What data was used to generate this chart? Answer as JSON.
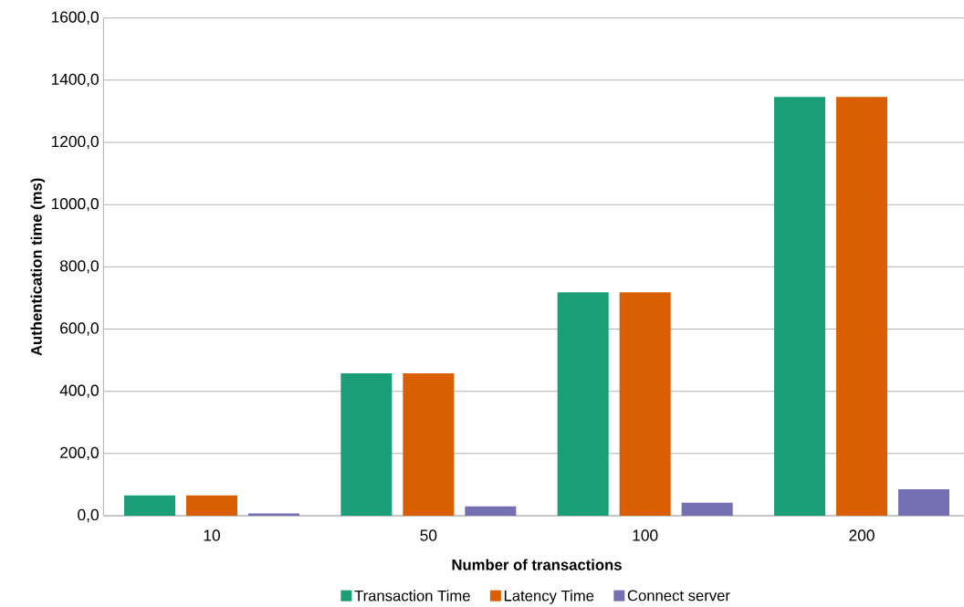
{
  "chart_data": {
    "type": "bar",
    "xlabel": "Number of transactions",
    "ylabel": "Authentication time (ms)",
    "categories": [
      "10",
      "50",
      "100",
      "200"
    ],
    "series": [
      {
        "name": "Transaction Time",
        "color": "#1a9e77",
        "values": [
          65,
          458,
          718,
          1346
        ]
      },
      {
        "name": "Latency Time",
        "color": "#d95f02",
        "values": [
          65,
          458,
          718,
          1346
        ]
      },
      {
        "name": "Connect server",
        "color": "#7570b3",
        "values": [
          7,
          30,
          42,
          85
        ]
      }
    ],
    "ylim": [
      0,
      1600
    ],
    "yticks": [
      {
        "value": 0,
        "label": "0,0"
      },
      {
        "value": 200,
        "label": "200,0"
      },
      {
        "value": 400,
        "label": "400,0"
      },
      {
        "value": 600,
        "label": "600,0"
      },
      {
        "value": 800,
        "label": "800,0"
      },
      {
        "value": 1000,
        "label": "1000,0"
      },
      {
        "value": 1200,
        "label": "1200,0"
      },
      {
        "value": 1400,
        "label": "1400,0"
      },
      {
        "value": 1600,
        "label": "1600,0"
      }
    ],
    "grid": "y",
    "legend": "bottom"
  }
}
